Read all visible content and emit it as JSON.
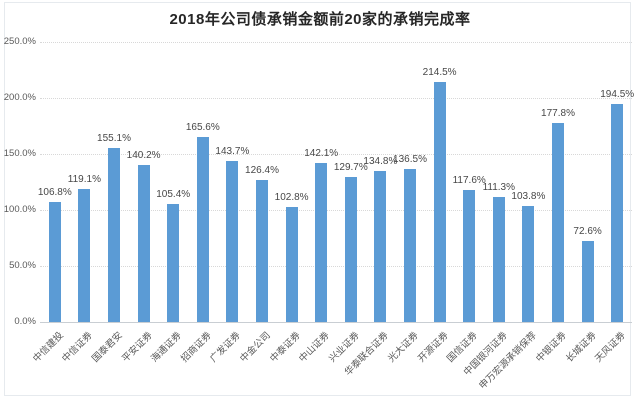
{
  "title": "2018年公司债承销金额前20家的承销完成率",
  "chart_data": {
    "type": "bar",
    "title": "2018年公司债承销金额前20家的承销完成率",
    "categories": [
      "中信建投",
      "中信证券",
      "国泰君安",
      "平安证券",
      "海通证券",
      "招商证券",
      "广发证券",
      "中金公司",
      "中泰证券",
      "中山证券",
      "兴业证券",
      "华泰联合证券",
      "光大证券",
      "开源证券",
      "国信证券",
      "中国银河证券",
      "申万宏源承销保荐",
      "中银证券",
      "长城证券",
      "天风证券"
    ],
    "values": [
      106.8,
      119.1,
      155.1,
      140.2,
      105.4,
      165.6,
      143.7,
      126.4,
      102.8,
      142.1,
      129.7,
      134.8,
      136.5,
      214.5,
      117.6,
      111.3,
      103.8,
      177.8,
      72.6,
      194.5
    ],
    "value_label_suffix": "%",
    "xlabel": "",
    "ylabel": "",
    "ylim": [
      0,
      250
    ],
    "ytick_values": [
      0,
      50,
      100,
      150,
      200,
      250
    ],
    "ytick_labels": [
      "0.0%",
      "50.0%",
      "100.0%",
      "150.0%",
      "200.0%",
      "250.0%"
    ],
    "grid": "horizontal-dotted",
    "legend": "none",
    "bar_color": "#5b9bd5"
  },
  "colors": {
    "bar": "#5b9bd5",
    "title_text": "#262626",
    "axis_text": "#595959",
    "value_label_text": "#474747",
    "gridline": "#d8d8d8",
    "axis_line": "#c9ced3",
    "frame_border": "#e6eaee",
    "background": "#ffffff"
  }
}
